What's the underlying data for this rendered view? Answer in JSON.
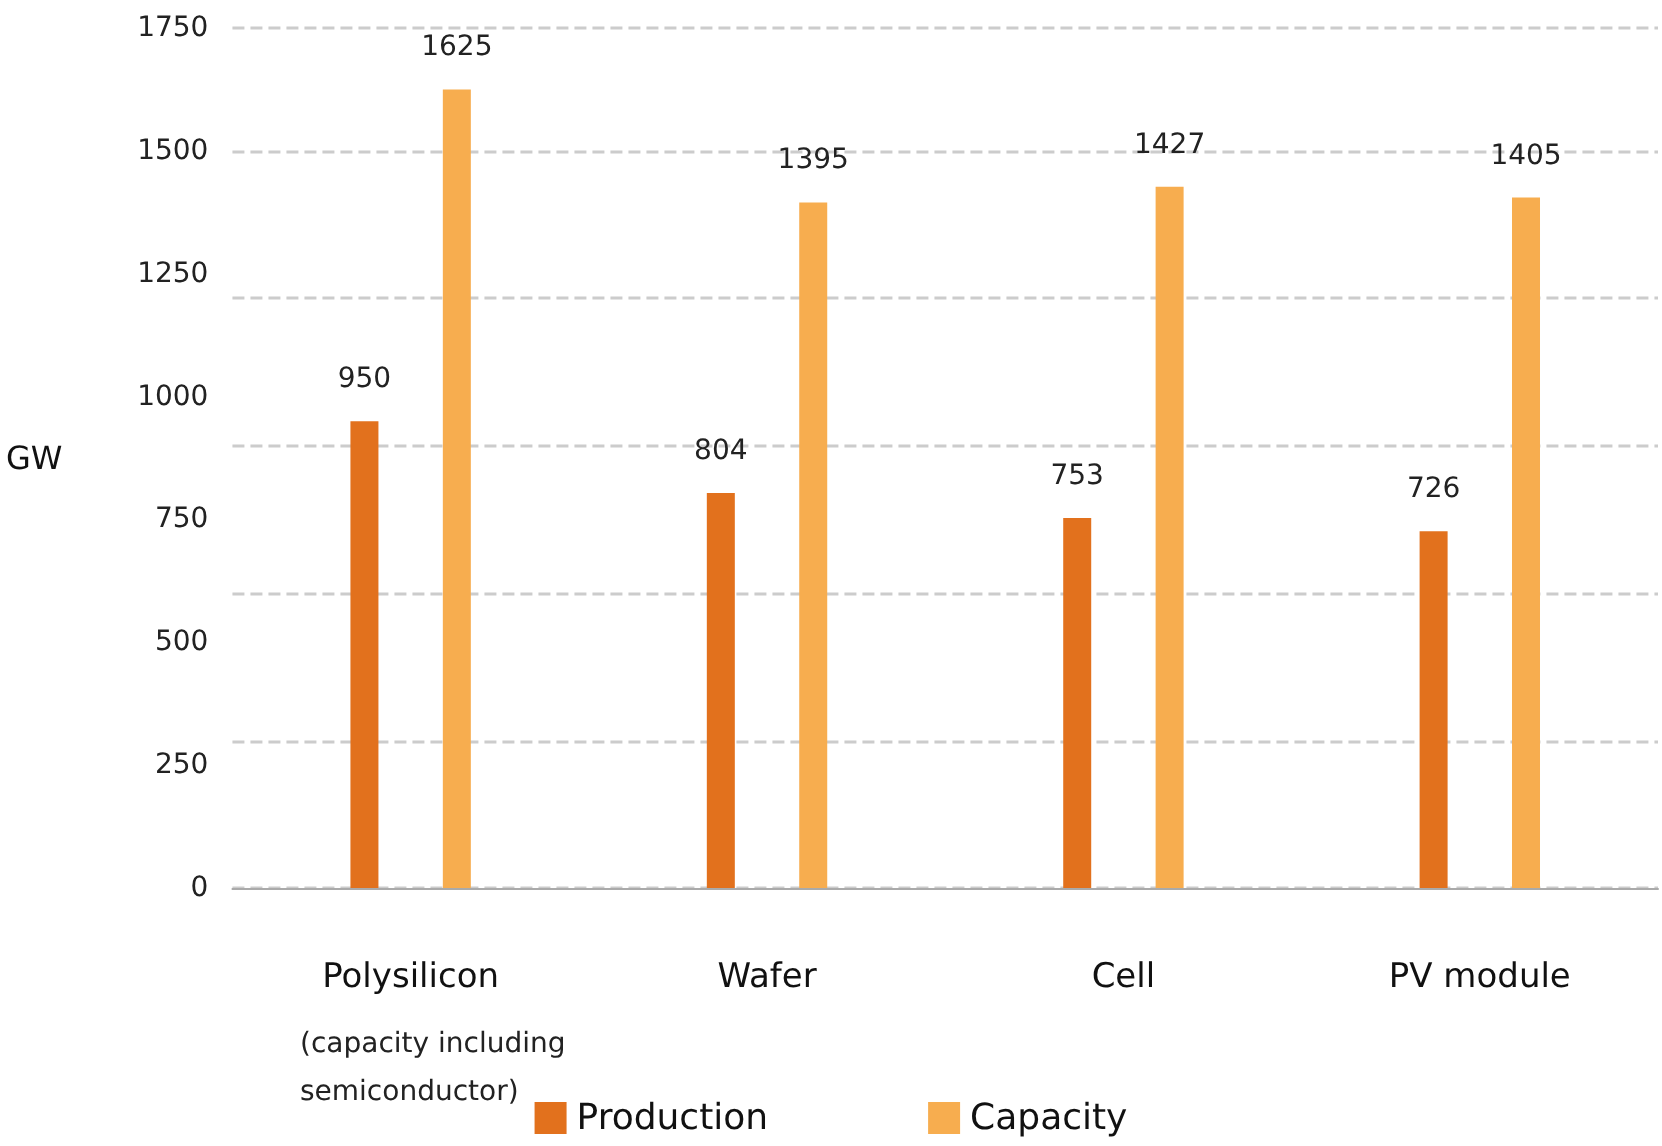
{
  "chart_data": {
    "type": "bar",
    "ylabel": "GW",
    "categories": [
      "Polysilicon",
      "Wafer",
      "Cell",
      "PV module"
    ],
    "series": [
      {
        "name": "Production",
        "color": "#e2711d",
        "values": [
          950,
          804,
          753,
          726
        ]
      },
      {
        "name": "Capacity",
        "color": "#f7ad4f",
        "values": [
          1625,
          1395,
          1427,
          1405
        ]
      }
    ],
    "ylim": [
      0,
      1750
    ],
    "yticks": [
      0,
      250,
      500,
      750,
      1000,
      1250,
      1500,
      1750
    ],
    "grid": "y",
    "legend": "bottom",
    "data_labels": true,
    "annotations": [
      "(capacity including semiconductor)"
    ]
  }
}
